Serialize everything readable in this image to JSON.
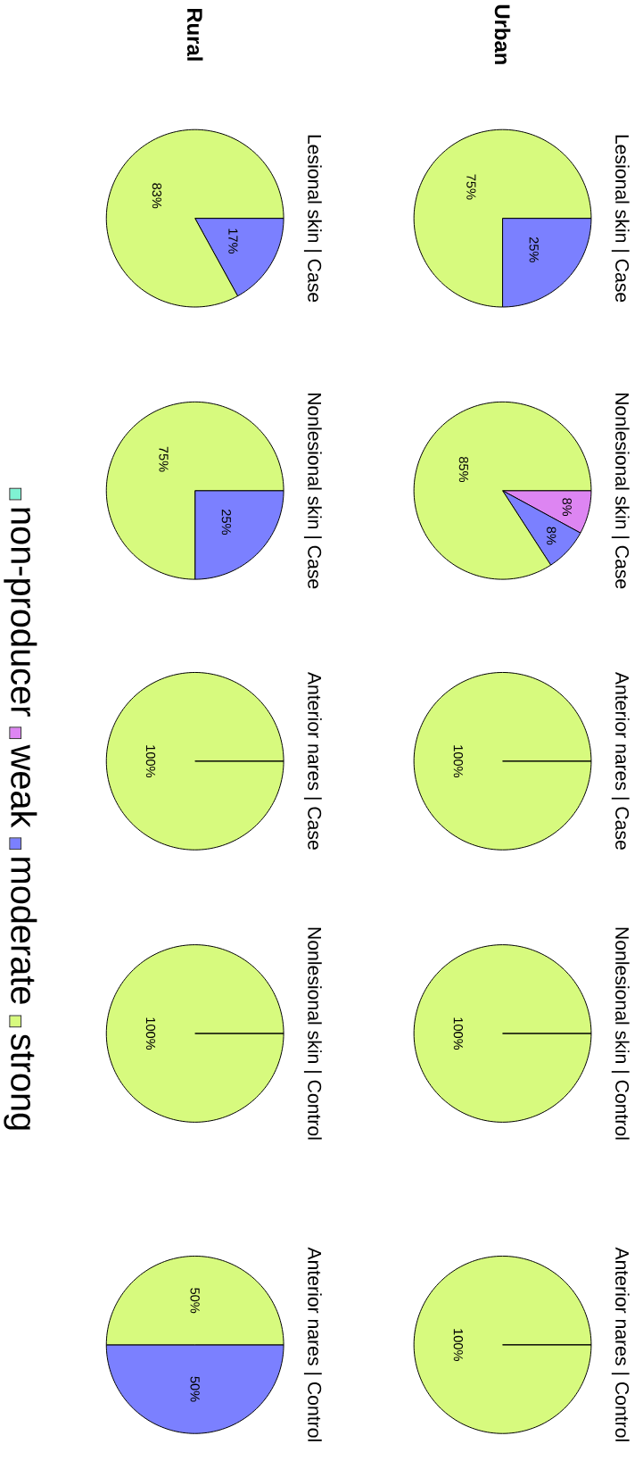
{
  "chart_data": [
    {
      "type": "pie",
      "subtitle": "Urban",
      "title": "Lesional skin | Case",
      "categories": [
        null,
        null,
        null,
        null
      ],
      "values": [
        0,
        0,
        25,
        75
      ],
      "colors": [
        "#7ff2d3",
        "#dd85f2",
        "#7b80ff",
        "#d7fa7e"
      ],
      "value_labels": [
        null,
        null,
        "25%",
        "75%"
      ]
    },
    {
      "type": "pie",
      "title": "Nonlesional skin | Case",
      "categories": [
        null,
        null,
        null,
        null
      ],
      "values": [
        0,
        8,
        8,
        85
      ],
      "colors": [
        "#7ff2d3",
        "#dd85f2",
        "#7b80ff",
        "#d7fa7e"
      ],
      "value_labels": [
        null,
        "8%",
        "8%",
        "85%"
      ]
    },
    {
      "type": "pie",
      "title": "Anterior nares | Case",
      "categories": [
        null,
        null,
        null,
        null
      ],
      "values": [
        0,
        0,
        0,
        100
      ],
      "colors": [
        "#7ff2d3",
        "#dd85f2",
        "#7b80ff",
        "#d7fa7e"
      ],
      "value_labels": [
        null,
        null,
        null,
        "100%"
      ]
    },
    {
      "type": "pie",
      "title": "Nonlesional skin | Control",
      "categories": [
        null,
        null,
        null,
        null
      ],
      "values": [
        0,
        0,
        0,
        100
      ],
      "colors": [
        "#7ff2d3",
        "#dd85f2",
        "#7b80ff",
        "#d7fa7e"
      ],
      "value_labels": [
        null,
        null,
        null,
        "100%"
      ]
    },
    {
      "type": "pie",
      "title": "Anterior nares | Control",
      "categories": [
        null,
        null,
        null,
        null
      ],
      "values": [
        0,
        0,
        0,
        100
      ],
      "colors": [
        "#7ff2d3",
        "#dd85f2",
        "#7b80ff",
        "#d7fa7e"
      ],
      "value_labels": [
        null,
        null,
        null,
        "100%"
      ]
    },
    {
      "type": "pie",
      "subtitle": "Rural",
      "title": "Lesional skin | Case",
      "categories": [
        null,
        null,
        null,
        null
      ],
      "values": [
        0,
        0,
        17,
        83
      ],
      "colors": [
        "#7ff2d3",
        "#dd85f2",
        "#7b80ff",
        "#d7fa7e"
      ],
      "value_labels": [
        null,
        null,
        "17%",
        "83%"
      ]
    },
    {
      "type": "pie",
      "title": "Nonlesional skin | Case",
      "categories": [
        null,
        null,
        null,
        null
      ],
      "values": [
        0,
        0,
        25,
        75
      ],
      "colors": [
        "#7ff2d3",
        "#dd85f2",
        "#7b80ff",
        "#d7fa7e"
      ],
      "value_labels": [
        null,
        null,
        "25%",
        "75%"
      ]
    },
    {
      "type": "pie",
      "title": "Anterior nares | Case",
      "categories": [
        null,
        null,
        null,
        null
      ],
      "values": [
        0,
        0,
        0,
        100
      ],
      "colors": [
        "#7ff2d3",
        "#dd85f2",
        "#7b80ff",
        "#d7fa7e"
      ],
      "value_labels": [
        null,
        null,
        null,
        "100%"
      ]
    },
    {
      "type": "pie",
      "title": "Nonlesional skin | Control",
      "categories": [
        null,
        null,
        null,
        null
      ],
      "values": [
        0,
        0,
        0,
        100
      ],
      "colors": [
        "#7ff2d3",
        "#dd85f2",
        "#7b80ff",
        "#d7fa7e"
      ],
      "value_labels": [
        null,
        null,
        null,
        "100%"
      ]
    },
    {
      "type": "pie",
      "title": "Anterior nares | Control",
      "categories": [
        "non-producer",
        "weak",
        "moderate",
        "strong"
      ],
      "values": [
        0,
        0,
        50,
        50
      ],
      "colors": [
        "#7ff2d3",
        "#dd85f2",
        "#7b80ff",
        "#d7fa7e"
      ],
      "value_labels": [
        null,
        null,
        "50%",
        "50%"
      ],
      "legend": "top left"
    }
  ]
}
